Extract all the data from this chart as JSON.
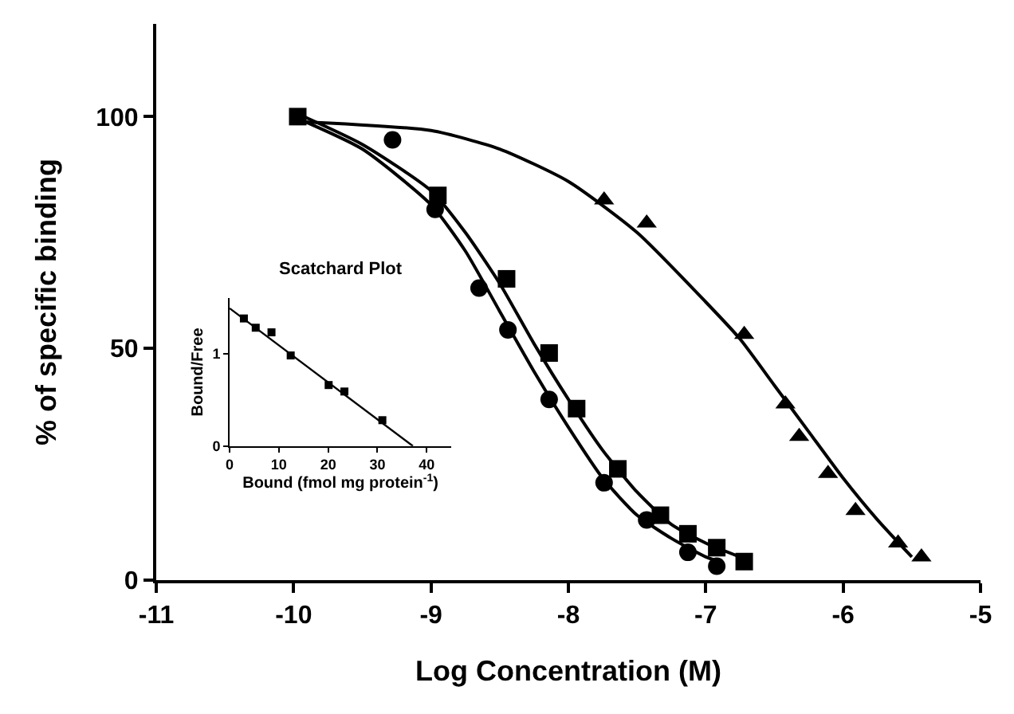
{
  "chart_data": [
    {
      "type": "scatter",
      "xlabel": "Log Concentration (M)",
      "ylabel": "% of specific binding",
      "xlim": [
        -11,
        -5
      ],
      "xticks": [
        -11,
        -10,
        -9,
        -8,
        -7,
        -6,
        -5
      ],
      "ylim": [
        0,
        120
      ],
      "yticks": [
        0,
        50,
        100
      ],
      "series": [
        {
          "marker": "circle",
          "color": "#000000",
          "x": [
            -9.28,
            -8.97,
            -8.65,
            -8.44,
            -8.14,
            -7.74,
            -7.43,
            -7.13,
            -6.92
          ],
          "values": [
            95,
            80,
            63,
            54,
            39,
            21,
            13,
            6,
            3
          ]
        },
        {
          "marker": "square",
          "color": "#000000",
          "x": [
            -9.97,
            -8.95,
            -8.45,
            -8.14,
            -7.94,
            -7.64,
            -7.33,
            -7.13,
            -6.92,
            -6.72
          ],
          "values": [
            100,
            83,
            65,
            49,
            37,
            24,
            14,
            10,
            7,
            4
          ]
        },
        {
          "marker": "triangle",
          "color": "#000000",
          "x": [
            -7.74,
            -7.43,
            -6.72,
            -6.42,
            -6.32,
            -6.11,
            -5.91,
            -5.6,
            -5.43
          ],
          "values": [
            82,
            77,
            53,
            38,
            31,
            23,
            15,
            8,
            5
          ]
        },
        {
          "type": "line",
          "marker": "none",
          "color": "#000000",
          "x": [
            -10,
            -9.5,
            -9,
            -8.75,
            -8.5,
            -8.25,
            -8,
            -7.75,
            -7.5,
            -7.25,
            -7,
            -6.9
          ],
          "values": [
            100,
            93,
            81,
            71,
            58,
            45,
            33,
            22,
            14,
            9,
            5,
            4
          ]
        },
        {
          "type": "line",
          "marker": "none",
          "color": "#000000",
          "x": [
            -10,
            -9.5,
            -9,
            -8.75,
            -8.5,
            -8.25,
            -8,
            -7.75,
            -7.5,
            -7.25,
            -7,
            -6.75
          ],
          "values": [
            101,
            94,
            84,
            75,
            64,
            51,
            39,
            28,
            19,
            12,
            8,
            5
          ]
        },
        {
          "type": "line",
          "marker": "none",
          "color": "#000000",
          "x": [
            -10,
            -9,
            -8.5,
            -8,
            -7.5,
            -7,
            -6.75,
            -6.5,
            -6.25,
            -6,
            -5.75,
            -5.5
          ],
          "values": [
            99,
            97,
            93,
            86,
            75,
            60,
            52,
            42,
            32,
            22,
            13,
            5
          ]
        }
      ]
    },
    {
      "type": "scatter",
      "title": "Scatchard Plot",
      "xlabel": "Bound (fmol mg protein$^{-1}$)",
      "ylabel": "Bound/Free",
      "xlim": [
        0,
        45
      ],
      "xticks": [
        0,
        10,
        20,
        30,
        40
      ],
      "ylim": [
        0,
        1.6
      ],
      "yticks": [
        0,
        1
      ],
      "series": [
        {
          "marker": "square",
          "color": "#000000",
          "x": [
            2.9,
            5.3,
            8.5,
            12.4,
            20.1,
            23.3,
            31.0
          ],
          "values": [
            1.38,
            1.28,
            1.23,
            0.98,
            0.66,
            0.59,
            0.28
          ]
        },
        {
          "type": "line",
          "marker": "none",
          "color": "#000000",
          "x": [
            0,
            37.2
          ],
          "values": [
            1.49,
            0
          ]
        }
      ]
    }
  ]
}
